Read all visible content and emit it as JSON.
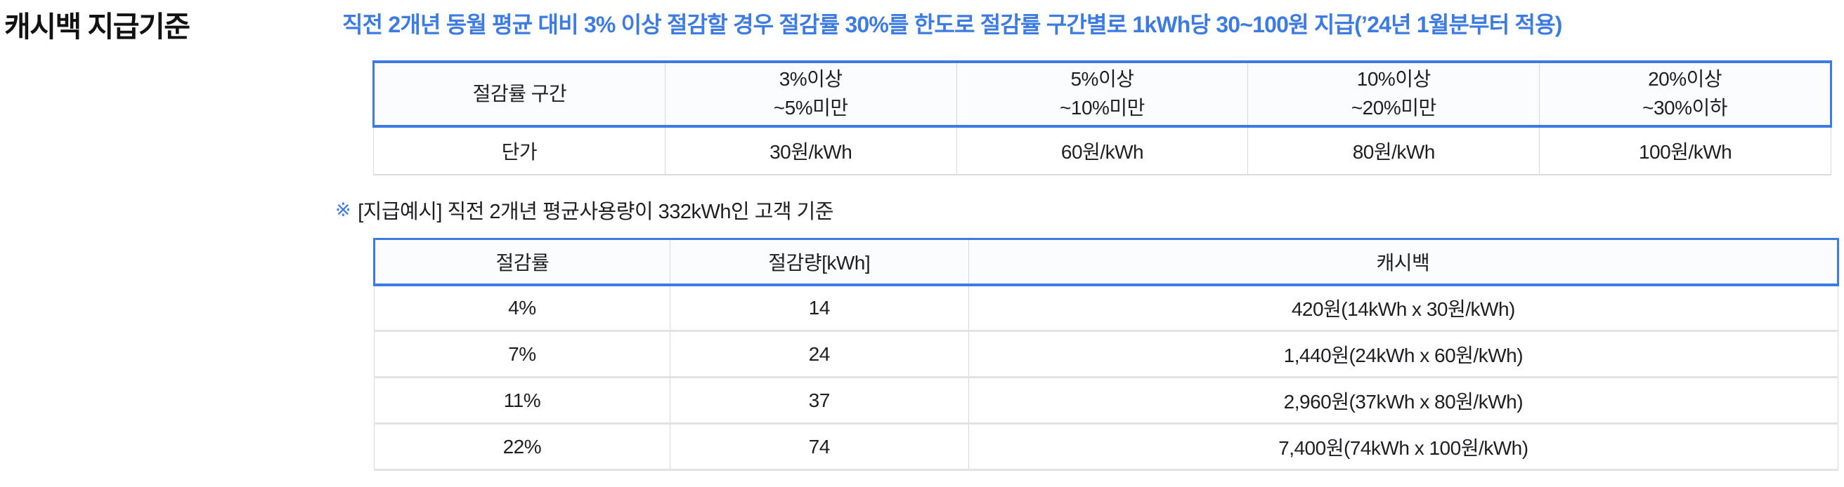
{
  "page": {
    "title": "캐시백 지급기준",
    "headline": "직전 2개년 동월 평균 대비 3% 이상 절감할 경우 절감률 30%를 한도로 절감률 구간별로 1kWh당 30~100원 지급(’24년 1월분부터 적용)",
    "note_marker": "※",
    "note_text": "[지급예시] 직전 2개년 평균사용량이 332kWh인 고객 기준"
  },
  "colors": {
    "accent_blue": "#3C7BE2",
    "header_bg": "#FBFCFE",
    "grid_gray": "#D3D8DE",
    "row_divider": "#E2E3E5",
    "text_dark": "#1F1F23"
  },
  "rate_table": {
    "headers": [
      "절감률 구간",
      "3%이상\n~5%미만",
      "5%이상\n~10%미만",
      "10%이상\n~20%미만",
      "20%이상\n~30%이하"
    ],
    "row_label": "단가",
    "row_values": [
      "30원/kWh",
      "60원/kWh",
      "80원/kWh",
      "100원/kWh"
    ]
  },
  "example_table": {
    "headers": [
      "절감률",
      "절감량[kWh]",
      "캐시백"
    ],
    "rows": [
      {
        "rate": "4%",
        "amount": "14",
        "cashback": "420원(14kWh x 30원/kWh)"
      },
      {
        "rate": "7%",
        "amount": "24",
        "cashback": "1,440원(24kWh x 60원/kWh)"
      },
      {
        "rate": "11%",
        "amount": "37",
        "cashback": "2,960원(37kWh x 80원/kWh)"
      },
      {
        "rate": "22%",
        "amount": "74",
        "cashback": "7,400원(74kWh x 100원/kWh)"
      }
    ]
  },
  "chart_data": {
    "type": "table",
    "title": "캐시백 지급기준",
    "rate_bands": [
      "3%이상~5%미만",
      "5%이상~10%미만",
      "10%이상~20%미만",
      "20%이상~30%이하"
    ],
    "unit_price_won_per_kwh": [
      30,
      60,
      80,
      100
    ],
    "example_base_usage_kwh": 332,
    "example_rows": [
      {
        "saving_rate_pct": 4,
        "saved_kwh": 14,
        "cashback_won": 420
      },
      {
        "saving_rate_pct": 7,
        "saved_kwh": 24,
        "cashback_won": 1440
      },
      {
        "saving_rate_pct": 11,
        "saved_kwh": 37,
        "cashback_won": 2960
      },
      {
        "saving_rate_pct": 22,
        "saved_kwh": 74,
        "cashback_won": 7400
      }
    ]
  }
}
